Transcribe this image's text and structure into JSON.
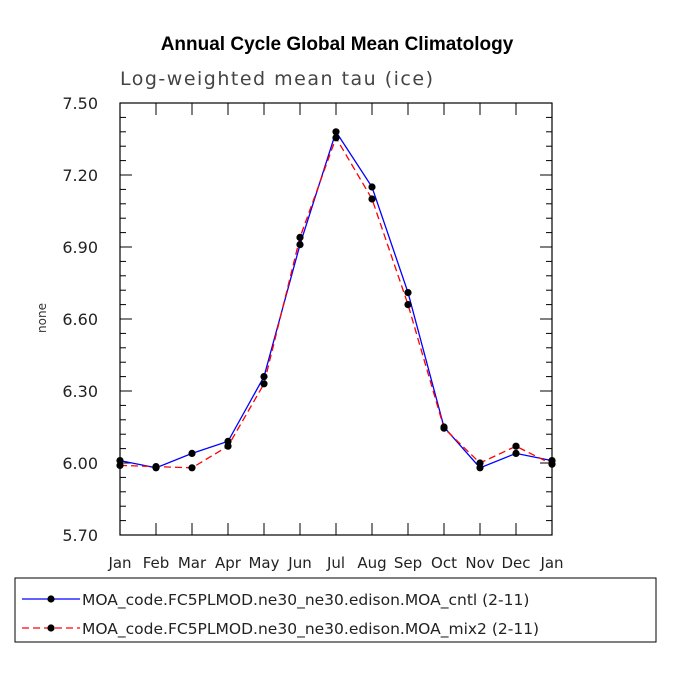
{
  "chart_data": {
    "type": "line",
    "title": "Annual Cycle Global Mean Climatology",
    "subtitle": "Log-weighted mean tau (ice)",
    "xlabel": "",
    "ylabel": "none",
    "categories": [
      "Jan",
      "Feb",
      "Mar",
      "Apr",
      "May",
      "Jun",
      "Jul",
      "Aug",
      "Sep",
      "Oct",
      "Nov",
      "Dec",
      "Jan"
    ],
    "ylim": [
      5.7,
      7.5
    ],
    "yticks": [
      "7.50",
      "7.20",
      "6.90",
      "6.60",
      "6.30",
      "6.00",
      "5.70"
    ],
    "grid": false,
    "legend_position": "bottom",
    "series": [
      {
        "name": "MOA_code.FC5PLMOD.ne30_ne30.edison.MOA_cntl (2-11)",
        "color": "#0000ff",
        "linestyle": "solid",
        "values": [
          6.01,
          5.98,
          6.04,
          6.09,
          6.36,
          6.91,
          7.38,
          7.15,
          6.71,
          6.15,
          5.98,
          6.04,
          6.01
        ]
      },
      {
        "name": "MOA_code.FC5PLMOD.ne30_ne30.edison.MOA_mix2 (2-11)",
        "color": "#ff0000",
        "linestyle": "dashed",
        "values": [
          5.99,
          5.985,
          5.98,
          6.07,
          6.33,
          6.94,
          7.355,
          7.1,
          6.66,
          6.145,
          6.0,
          6.07,
          5.995
        ]
      }
    ]
  }
}
